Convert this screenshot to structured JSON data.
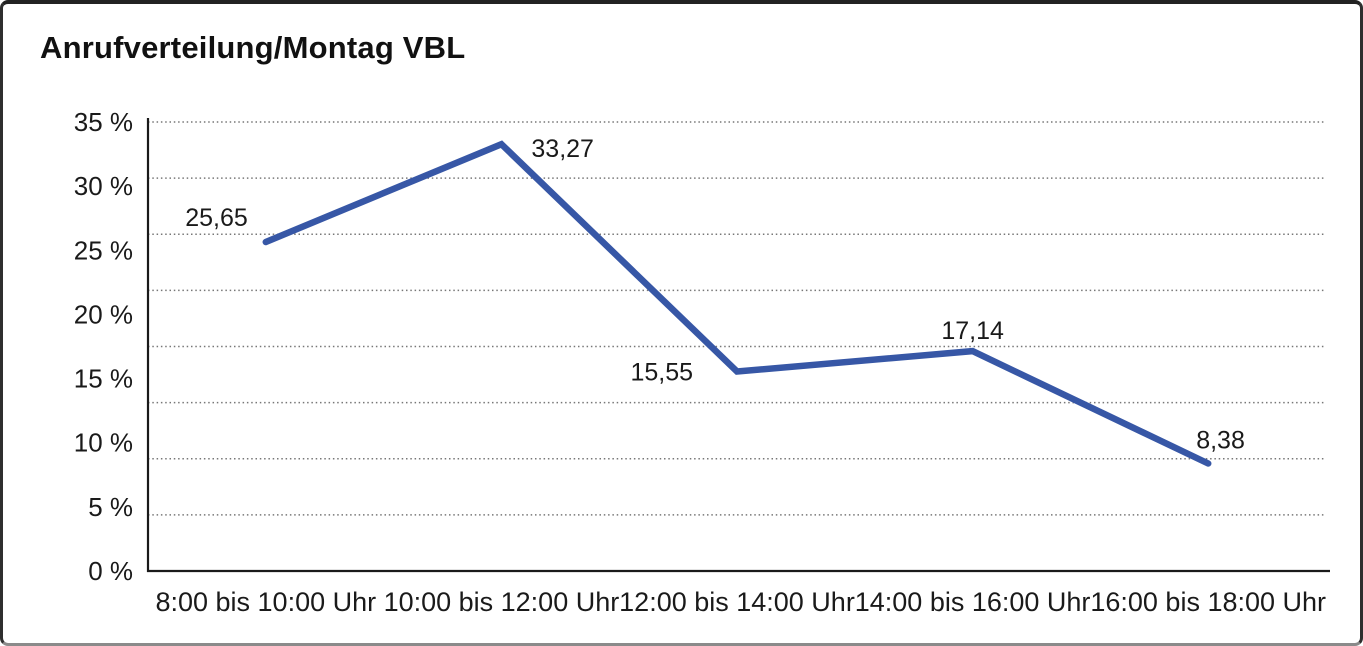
{
  "header": {
    "title": "Anrufverteilung/Montag VBL"
  },
  "chart_data": {
    "type": "line",
    "title": "Anrufverteilung/Montag VBL",
    "categories": [
      "8:00 bis 10:00 Uhr",
      "10:00 bis 12:00 Uhr",
      "12:00 bis 14:00 Uhr",
      "14:00 bis 16:00 Uhr",
      "16:00 bis 18:00 Uhr"
    ],
    "values": [
      25.65,
      33.27,
      15.55,
      17.14,
      8.38
    ],
    "point_labels": [
      "25,65",
      "33,27",
      "15,55",
      "17,14",
      "8,38"
    ],
    "y_ticks": [
      {
        "value": 35,
        "label": "35 %"
      },
      {
        "value": 30,
        "label": "30 %"
      },
      {
        "value": 25,
        "label": "25 %"
      },
      {
        "value": 20,
        "label": "20 %"
      },
      {
        "value": 15,
        "label": "15 %"
      },
      {
        "value": 10,
        "label": "10 %"
      },
      {
        "value": 5,
        "label": "5 %"
      },
      {
        "value": 0,
        "label": "0 %"
      }
    ],
    "ylim": [
      0,
      35
    ],
    "xlabel": "",
    "ylabel": "",
    "unit": "%",
    "grid": "horizontal-dotted",
    "gridline_intervals": 8,
    "legend": "none",
    "line_color": "#3757A6"
  }
}
